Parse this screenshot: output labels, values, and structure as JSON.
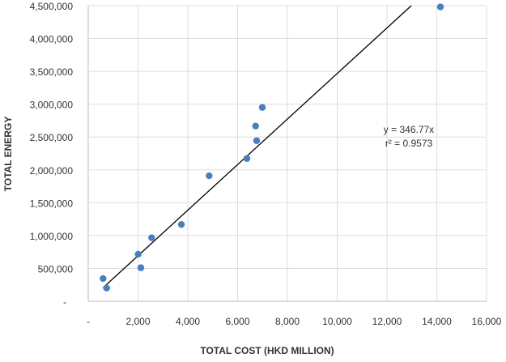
{
  "chart_data": {
    "type": "scatter",
    "title": "",
    "xlabel": "TOTAL COST (HKD MILLION)",
    "ylabel": "TOTAL ENERGY",
    "xlim": [
      0,
      16000
    ],
    "ylim": [
      0,
      4500000
    ],
    "grid": true,
    "x_ticks": [
      0,
      2000,
      4000,
      6000,
      8000,
      10000,
      12000,
      14000,
      16000
    ],
    "x_tick_labels": [
      "-",
      "2,000",
      "4,000",
      "6,000",
      "8,000",
      "10,000",
      "12,000",
      "14,000",
      "16,000"
    ],
    "y_ticks": [
      0,
      500000,
      1000000,
      1500000,
      2000000,
      2500000,
      3000000,
      3500000,
      4000000,
      4500000
    ],
    "y_tick_labels": [
      "-",
      "500,000",
      "1,000,000",
      "1,500,000",
      "2,000,000",
      "2,500,000",
      "3,000,000",
      "3,500,000",
      "4,000,000",
      "4,500,000"
    ],
    "point_color": "#4a7ebf",
    "points": [
      [
        595,
        346000
      ],
      [
        738,
        201000
      ],
      [
        2006,
        716000
      ],
      [
        2114,
        510000
      ],
      [
        2546,
        967000
      ],
      [
        3740,
        1169000
      ],
      [
        4856,
        1910000
      ],
      [
        6374,
        2173000
      ],
      [
        6764,
        2444000
      ],
      [
        6722,
        2667000
      ],
      [
        6992,
        2951000
      ],
      [
        14146,
        4481000
      ]
    ],
    "trendline": {
      "slope": 346.77,
      "intercept": 0,
      "color": "#000000",
      "equation": "y = 346.77x",
      "r2_label": "r² = 0.9573"
    }
  }
}
